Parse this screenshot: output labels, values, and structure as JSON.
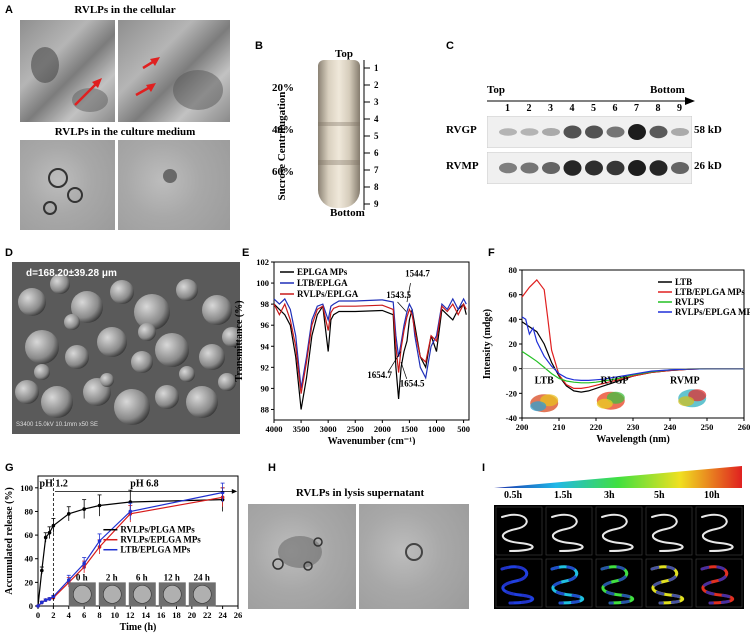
{
  "panels": {
    "A": {
      "label": "A",
      "title_top": "RVLPs in the cellular",
      "title_bottom": "RVLPs in the culture medium"
    },
    "B": {
      "label": "B",
      "top": "Top",
      "bottom": "Bottom",
      "ylabel": "Sucrose Centrifugation",
      "percents": [
        "20%",
        "40%",
        "60%"
      ],
      "fractions": [
        "1",
        "2",
        "3",
        "4",
        "5",
        "6",
        "7",
        "8",
        "9"
      ]
    },
    "C": {
      "label": "C",
      "top": "Top",
      "bottom": "Bottom",
      "lanes": [
        "1",
        "2",
        "3",
        "4",
        "5",
        "6",
        "7",
        "8",
        "9"
      ],
      "bands": [
        {
          "name": "RVGP",
          "size": "58 kD",
          "intensity": [
            0.15,
            0.15,
            0.2,
            0.7,
            0.7,
            0.5,
            1.0,
            0.65,
            0.2
          ]
        },
        {
          "name": "RVMP",
          "size": "26 kD",
          "intensity": [
            0.45,
            0.5,
            0.6,
            0.95,
            0.9,
            0.85,
            1.0,
            0.95,
            0.6
          ]
        }
      ]
    },
    "D": {
      "label": "D",
      "annotation": "d=168.20±39.28 μm",
      "footer": "S3400 15.0kV 10.1mm x50 SE"
    },
    "E": {
      "label": "E"
    },
    "F": {
      "label": "F"
    },
    "G": {
      "label": "G",
      "phases": [
        "pH 1.2",
        "pH 6.8"
      ],
      "inset_times": [
        "0 h",
        "2 h",
        "6 h",
        "12 h",
        "24 h"
      ]
    },
    "H": {
      "label": "H",
      "title": "RVLPs in lysis supernatant"
    },
    "I": {
      "label": "I",
      "times": [
        "0.5h",
        "1.5h",
        "3h",
        "5h",
        "10h"
      ]
    }
  },
  "chart_data": [
    {
      "panel": "E",
      "type": "line",
      "xlabel": "Wavenumber (cm⁻¹)",
      "ylabel": "Transmittance (%)",
      "xlim": [
        4000,
        400
      ],
      "ylim": [
        87,
        102
      ],
      "xticks": [
        4000,
        3500,
        3000,
        2500,
        2000,
        1500,
        1000,
        500
      ],
      "yticks": [
        88,
        90,
        92,
        94,
        96,
        98,
        100,
        102
      ],
      "annotations": [
        "1543.5",
        "1544.7",
        "1654.7",
        "1654.5"
      ],
      "series": [
        {
          "name": "EPLGA MPs",
          "color": "#000000",
          "x": [
            4000,
            3900,
            3800,
            3700,
            3600,
            3500,
            3400,
            3300,
            3200,
            3100,
            3000,
            2950,
            2900,
            2800,
            2500,
            2000,
            1800,
            1750,
            1700,
            1654,
            1600,
            1545,
            1500,
            1450,
            1400,
            1300,
            1200,
            1100,
            1000,
            900,
            800,
            700,
            600,
            500,
            450
          ],
          "y": [
            98,
            97.5,
            97,
            96,
            93,
            88,
            91,
            95,
            97,
            97.8,
            93.5,
            96.5,
            97,
            97.3,
            97.3,
            97.4,
            97,
            92,
            89,
            92,
            93.5,
            94.5,
            96.5,
            97.5,
            96,
            93,
            92,
            95,
            93.5,
            97.5,
            97,
            96.5,
            97.5,
            98,
            97
          ]
        },
        {
          "name": "LTB/EPLGA",
          "color": "#1f2fb8",
          "x": [
            4000,
            3900,
            3800,
            3700,
            3600,
            3500,
            3400,
            3300,
            3200,
            3100,
            3000,
            2950,
            2900,
            2800,
            2500,
            2000,
            1800,
            1750,
            1700,
            1654,
            1600,
            1545,
            1500,
            1450,
            1400,
            1300,
            1200,
            1100,
            1000,
            900,
            800,
            700,
            600,
            500,
            450
          ],
          "y": [
            98.5,
            98,
            98.5,
            97.5,
            95,
            90,
            93,
            96.5,
            97.8,
            98,
            96.5,
            97.8,
            98,
            98.3,
            98.3,
            98.4,
            98.2,
            95,
            93,
            94.3,
            96,
            97.3,
            98,
            97.5,
            95,
            92,
            91,
            94,
            95,
            98,
            97.5,
            98.5,
            97.5,
            98.5,
            98
          ]
        },
        {
          "name": "RVLPs/EPLGA",
          "color": "#c91a1a",
          "x": [
            4000,
            3900,
            3800,
            3700,
            3600,
            3500,
            3400,
            3300,
            3200,
            3100,
            3000,
            2950,
            2900,
            2800,
            2500,
            2000,
            1800,
            1750,
            1700,
            1654,
            1600,
            1545,
            1500,
            1450,
            1400,
            1300,
            1200,
            1100,
            1000,
            900,
            800,
            700,
            600,
            500,
            450
          ],
          "y": [
            98,
            97,
            98,
            96.5,
            94,
            89.5,
            92.5,
            96,
            97.5,
            97.8,
            95.5,
            97.2,
            97.6,
            97.8,
            97.8,
            97.9,
            97.5,
            94,
            91.5,
            93.8,
            95.5,
            96.8,
            97.5,
            97,
            95.5,
            93,
            92.5,
            95,
            94.5,
            97.8,
            97.3,
            98,
            97,
            98,
            97.5
          ]
        }
      ]
    },
    {
      "panel": "F",
      "type": "line",
      "xlabel": "Wavelength (nm)",
      "ylabel": "Intensity (mdge)",
      "xlim": [
        200,
        260
      ],
      "ylim": [
        -40,
        80
      ],
      "xticks": [
        200,
        210,
        220,
        230,
        240,
        250,
        260
      ],
      "yticks": [
        -40,
        -20,
        0,
        20,
        40,
        60,
        80
      ],
      "structure_labels": [
        "LTB",
        "RVGP",
        "RVMP"
      ],
      "series": [
        {
          "name": "LTB",
          "color": "#000000",
          "x": [
            200,
            202,
            204,
            206,
            208,
            210,
            212,
            214,
            216,
            218,
            220,
            222,
            224,
            226,
            228,
            230,
            235,
            240,
            245,
            250,
            255,
            260
          ],
          "y": [
            38,
            34,
            30,
            20,
            5,
            -6,
            -14,
            -18,
            -19,
            -18,
            -16,
            -14,
            -12,
            -10,
            -8,
            -6,
            -3,
            -1.5,
            -0.5,
            0,
            0,
            0
          ]
        },
        {
          "name": "LTB/EPLGA MPs",
          "color": "#e02020",
          "x": [
            200,
            202,
            204,
            206,
            207,
            208,
            210,
            212,
            214,
            216,
            218,
            220,
            222,
            224,
            226,
            228,
            230,
            235,
            240,
            245,
            250,
            255,
            260
          ],
          "y": [
            58,
            66,
            72,
            64,
            40,
            15,
            -5,
            -13,
            -16,
            -16,
            -15,
            -13.5,
            -12,
            -10.5,
            -9,
            -7.5,
            -6,
            -3,
            -1.5,
            -0.5,
            0,
            0,
            0
          ]
        },
        {
          "name": "RVLPS",
          "color": "#22c022",
          "x": [
            200,
            202,
            204,
            206,
            208,
            210,
            212,
            214,
            216,
            218,
            220,
            222,
            224,
            226,
            228,
            230,
            235,
            240,
            245,
            250,
            255,
            260
          ],
          "y": [
            14,
            10,
            6,
            1,
            -4,
            -8,
            -10,
            -11,
            -11.5,
            -11.5,
            -11,
            -10,
            -9,
            -8,
            -6.5,
            -5,
            -2.5,
            -1,
            -0.3,
            0,
            0,
            0
          ]
        },
        {
          "name": "RVLPs/EPLGA MPs",
          "color": "#1f2fd8",
          "x": [
            200,
            201,
            202,
            203,
            204,
            206,
            208,
            210,
            212,
            214,
            216,
            218,
            220,
            222,
            224,
            226,
            228,
            230,
            235,
            240,
            245,
            250,
            255,
            260
          ],
          "y": [
            42,
            40,
            28,
            33,
            22,
            10,
            2,
            -4,
            -7.5,
            -9,
            -9.5,
            -9.5,
            -9,
            -8.5,
            -7.5,
            -6.5,
            -5.5,
            -4.5,
            -2,
            -1,
            -0.3,
            0,
            0,
            0
          ]
        }
      ]
    },
    {
      "panel": "G",
      "type": "line",
      "xlabel": "Time (h)",
      "ylabel": "Accumulated release (%)",
      "xlim": [
        0,
        26
      ],
      "ylim": [
        0,
        110
      ],
      "xticks": [
        0,
        2,
        4,
        6,
        8,
        10,
        12,
        14,
        16,
        18,
        20,
        22,
        24,
        26
      ],
      "yticks": [
        0,
        20,
        40,
        60,
        80,
        100
      ],
      "series": [
        {
          "name": "RVLPs/PLGA MPs",
          "color": "#000000",
          "x": [
            0,
            0.5,
            1,
            1.5,
            2,
            4,
            6,
            8,
            12,
            24
          ],
          "y": [
            0,
            30,
            58,
            62,
            68,
            78,
            82,
            85,
            88,
            90
          ],
          "err": [
            0,
            3,
            4,
            5,
            6,
            6,
            8,
            9,
            10,
            10
          ]
        },
        {
          "name": "RVLPs/EPLGA MPs",
          "color": "#d81b1b",
          "x": [
            0,
            0.5,
            1,
            1.5,
            2,
            4,
            6,
            8,
            12,
            24
          ],
          "y": [
            0,
            3,
            5,
            6,
            7,
            20,
            33,
            50,
            78,
            92
          ],
          "err": [
            0,
            1,
            1,
            1,
            1,
            4,
            5,
            6,
            7,
            8
          ]
        },
        {
          "name": "LTB/EPLGA MPs",
          "color": "#2030d0",
          "x": [
            0,
            0.5,
            1,
            1.5,
            2,
            4,
            6,
            8,
            12,
            24
          ],
          "y": [
            0,
            3,
            5,
            6,
            8,
            22,
            36,
            55,
            80,
            96
          ],
          "err": [
            0,
            1,
            1,
            1,
            1,
            4,
            5,
            6,
            7,
            8
          ]
        }
      ]
    }
  ]
}
